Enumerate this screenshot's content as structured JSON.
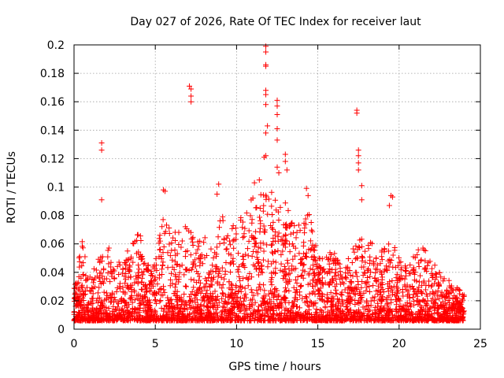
{
  "chart_data": {
    "type": "scatter",
    "title": "Day 027 of 2026, Rate Of TEC Index for receiver laut",
    "xlabel": "GPS time / hours",
    "ylabel": "ROTI / TECUs",
    "xlim": [
      0,
      25
    ],
    "ylim": [
      0,
      0.2
    ],
    "xticks": [
      0,
      5,
      10,
      15,
      20,
      25
    ],
    "xtick_labels": [
      "0",
      "5",
      "10",
      "15",
      "20",
      "25"
    ],
    "yticks": [
      0,
      0.02,
      0.04,
      0.06,
      0.08,
      0.1,
      0.12,
      0.14,
      0.16,
      0.18,
      0.2
    ],
    "ytick_labels": [
      "0",
      "0.02",
      "0.04",
      "0.06",
      "0.08",
      "0.1",
      "0.12",
      "0.14",
      "0.16",
      "0.18",
      "0.2"
    ],
    "grid": true,
    "marker": "+",
    "series_color": "#ff0000",
    "x_data_span": [
      0,
      24
    ],
    "notable_points": [
      {
        "x": 1.7,
        "y": 0.131
      },
      {
        "x": 1.7,
        "y": 0.126
      },
      {
        "x": 1.7,
        "y": 0.091
      },
      {
        "x": 5.5,
        "y": 0.098
      },
      {
        "x": 5.6,
        "y": 0.097
      },
      {
        "x": 7.1,
        "y": 0.171
      },
      {
        "x": 7.2,
        "y": 0.169
      },
      {
        "x": 7.2,
        "y": 0.164
      },
      {
        "x": 7.2,
        "y": 0.16
      },
      {
        "x": 8.9,
        "y": 0.102
      },
      {
        "x": 8.8,
        "y": 0.095
      },
      {
        "x": 11.1,
        "y": 0.103
      },
      {
        "x": 11.4,
        "y": 0.105
      },
      {
        "x": 11.8,
        "y": 0.199
      },
      {
        "x": 11.8,
        "y": 0.195
      },
      {
        "x": 11.8,
        "y": 0.186
      },
      {
        "x": 11.8,
        "y": 0.185
      },
      {
        "x": 11.8,
        "y": 0.168
      },
      {
        "x": 11.8,
        "y": 0.165
      },
      {
        "x": 11.8,
        "y": 0.158
      },
      {
        "x": 11.9,
        "y": 0.143
      },
      {
        "x": 11.8,
        "y": 0.138
      },
      {
        "x": 11.8,
        "y": 0.122
      },
      {
        "x": 11.7,
        "y": 0.121
      },
      {
        "x": 12.5,
        "y": 0.161
      },
      {
        "x": 12.5,
        "y": 0.157
      },
      {
        "x": 12.5,
        "y": 0.151
      },
      {
        "x": 12.5,
        "y": 0.141
      },
      {
        "x": 12.5,
        "y": 0.133
      },
      {
        "x": 12.5,
        "y": 0.114
      },
      {
        "x": 12.6,
        "y": 0.11
      },
      {
        "x": 13.0,
        "y": 0.123
      },
      {
        "x": 13.0,
        "y": 0.118
      },
      {
        "x": 13.1,
        "y": 0.112
      },
      {
        "x": 14.3,
        "y": 0.099
      },
      {
        "x": 14.4,
        "y": 0.094
      },
      {
        "x": 17.4,
        "y": 0.154
      },
      {
        "x": 17.4,
        "y": 0.152
      },
      {
        "x": 17.5,
        "y": 0.126
      },
      {
        "x": 17.5,
        "y": 0.122
      },
      {
        "x": 17.5,
        "y": 0.117
      },
      {
        "x": 17.5,
        "y": 0.112
      },
      {
        "x": 17.7,
        "y": 0.101
      },
      {
        "x": 17.7,
        "y": 0.091
      },
      {
        "x": 19.5,
        "y": 0.094
      },
      {
        "x": 19.6,
        "y": 0.093
      },
      {
        "x": 19.4,
        "y": 0.087
      }
    ],
    "bulk_envelope": [
      {
        "x": 0.0,
        "y": 0.03
      },
      {
        "x": 0.5,
        "y": 0.064
      },
      {
        "x": 1.0,
        "y": 0.04
      },
      {
        "x": 1.5,
        "y": 0.05
      },
      {
        "x": 2.0,
        "y": 0.065
      },
      {
        "x": 2.5,
        "y": 0.045
      },
      {
        "x": 3.0,
        "y": 0.05
      },
      {
        "x": 3.5,
        "y": 0.06
      },
      {
        "x": 3.9,
        "y": 0.075
      },
      {
        "x": 4.5,
        "y": 0.045
      },
      {
        "x": 5.0,
        "y": 0.05
      },
      {
        "x": 5.5,
        "y": 0.08
      },
      {
        "x": 6.0,
        "y": 0.07
      },
      {
        "x": 6.5,
        "y": 0.068
      },
      {
        "x": 7.0,
        "y": 0.075
      },
      {
        "x": 7.5,
        "y": 0.06
      },
      {
        "x": 8.0,
        "y": 0.07
      },
      {
        "x": 8.5,
        "y": 0.055
      },
      {
        "x": 9.0,
        "y": 0.085
      },
      {
        "x": 9.5,
        "y": 0.07
      },
      {
        "x": 10.0,
        "y": 0.08
      },
      {
        "x": 10.5,
        "y": 0.078
      },
      {
        "x": 11.0,
        "y": 0.095
      },
      {
        "x": 11.5,
        "y": 0.1
      },
      {
        "x": 12.0,
        "y": 0.095
      },
      {
        "x": 12.5,
        "y": 0.1
      },
      {
        "x": 13.0,
        "y": 0.09
      },
      {
        "x": 13.5,
        "y": 0.08
      },
      {
        "x": 14.0,
        "y": 0.07
      },
      {
        "x": 14.5,
        "y": 0.09
      },
      {
        "x": 15.0,
        "y": 0.05
      },
      {
        "x": 15.5,
        "y": 0.05
      },
      {
        "x": 16.0,
        "y": 0.06
      },
      {
        "x": 16.5,
        "y": 0.04
      },
      {
        "x": 17.0,
        "y": 0.055
      },
      {
        "x": 17.5,
        "y": 0.07
      },
      {
        "x": 18.0,
        "y": 0.065
      },
      {
        "x": 18.5,
        "y": 0.06
      },
      {
        "x": 19.0,
        "y": 0.055
      },
      {
        "x": 19.5,
        "y": 0.065
      },
      {
        "x": 20.0,
        "y": 0.05
      },
      {
        "x": 20.5,
        "y": 0.045
      },
      {
        "x": 21.0,
        "y": 0.055
      },
      {
        "x": 21.5,
        "y": 0.06
      },
      {
        "x": 22.0,
        "y": 0.05
      },
      {
        "x": 22.5,
        "y": 0.04
      },
      {
        "x": 23.0,
        "y": 0.035
      },
      {
        "x": 23.5,
        "y": 0.03
      },
      {
        "x": 24.0,
        "y": 0.025
      }
    ],
    "bulk_baseline": 0.006
  }
}
